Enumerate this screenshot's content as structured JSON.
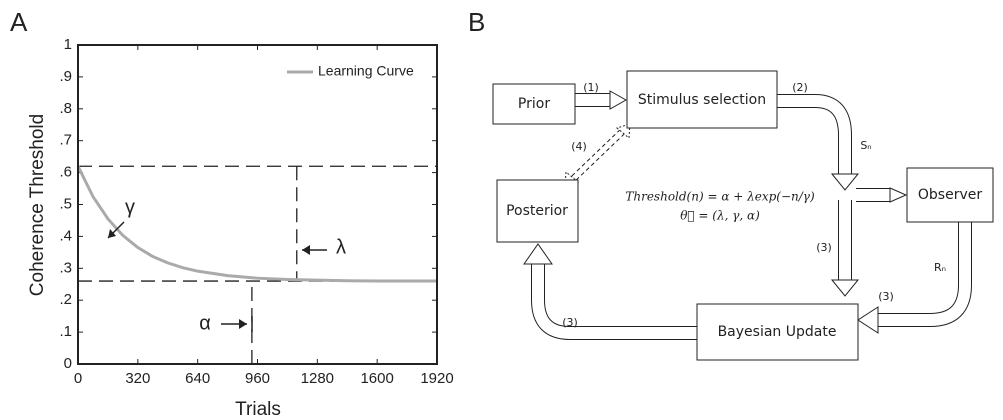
{
  "panel_labels": [
    "A",
    "B"
  ],
  "chart_data": {
    "type": "line",
    "x_label": "Trials",
    "y_label": "Coherence Threshold",
    "x": [
      0,
      80,
      160,
      240,
      320,
      400,
      480,
      560,
      640,
      800,
      960,
      1120,
      1280,
      1440,
      1600,
      1920
    ],
    "series": [
      {
        "name": "Learning Curve",
        "color": "#aaaaaa",
        "values": [
          0.62,
          0.525,
          0.455,
          0.403,
          0.365,
          0.337,
          0.317,
          0.302,
          0.291,
          0.277,
          0.269,
          0.265,
          0.263,
          0.261,
          0.26,
          0.26
        ]
      }
    ],
    "xlim": [
      0,
      1920
    ],
    "xticks": [
      0,
      320,
      640,
      960,
      1280,
      1600,
      1920
    ],
    "ylim": [
      0,
      1
    ],
    "yticks": [
      0,
      {
        "value": 0.1,
        "label": ".1"
      },
      {
        "value": 0.2,
        "label": ".2"
      },
      {
        "value": 0.3,
        "label": ".3"
      },
      {
        "value": 0.4,
        "label": ".4"
      },
      {
        "value": 0.5,
        "label": ".5"
      },
      {
        "value": 0.6,
        "label": ".6"
      },
      {
        "value": 0.7,
        "label": ".7"
      },
      {
        "value": 0.8,
        "label": ".8"
      },
      {
        "value": 0.9,
        "label": ".9"
      },
      1
    ],
    "legend": "upper right",
    "guides": {
      "hlines": [
        0.62,
        0.26
      ],
      "vlines": [
        1170,
        930
      ]
    },
    "annotations": [
      "γ",
      "λ",
      "α"
    ]
  },
  "diagram": {
    "nodes": [
      "Prior",
      "Stimulus selection",
      "Observer",
      "Posterior",
      "Bayesian Update"
    ],
    "edge_labels": [
      "(1)",
      "(2)",
      "(3)",
      "(3)",
      "(3)",
      "(4)"
    ],
    "signal_labels": [
      "Sₙ",
      "Rₙ"
    ],
    "equations": [
      "Threshold(n) = α + λexp(−n/γ)",
      "θ⃗ = (λ, γ, α)"
    ]
  }
}
